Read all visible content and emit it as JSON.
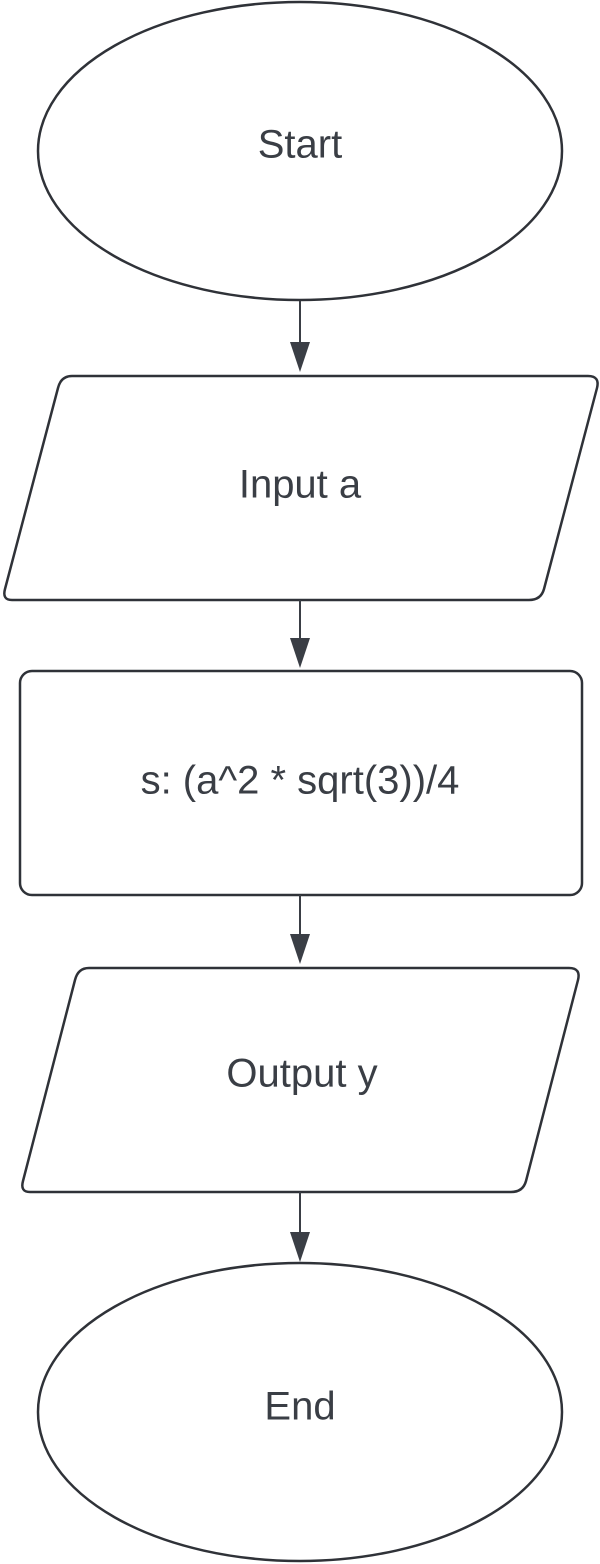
{
  "nodes": {
    "start": {
      "label": "Start",
      "shape": "terminator"
    },
    "input": {
      "label": "Input a",
      "shape": "input-output"
    },
    "process": {
      "label": "s: (a^2 * sqrt(3))/4",
      "shape": "process"
    },
    "output": {
      "label": "Output y",
      "shape": "input-output"
    },
    "end": {
      "label": "End",
      "shape": "terminator"
    }
  },
  "edges": [
    {
      "from": "start",
      "to": "input"
    },
    {
      "from": "input",
      "to": "process"
    },
    {
      "from": "process",
      "to": "output"
    },
    {
      "from": "output",
      "to": "end"
    }
  ],
  "colors": {
    "stroke": "#2f3238",
    "text": "#3a3e45",
    "fill": "#ffffff"
  }
}
